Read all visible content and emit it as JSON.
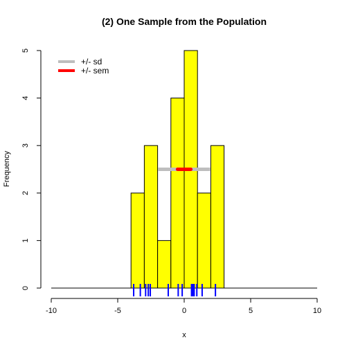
{
  "chart_data": {
    "type": "histogram",
    "title": "(2) One Sample from the Population",
    "xlabel": "x",
    "ylabel": "Frequency",
    "xlim": [
      -10,
      10
    ],
    "ylim": [
      0,
      5
    ],
    "x_ticks": [
      -10,
      -5,
      0,
      5,
      10
    ],
    "y_ticks": [
      0,
      1,
      2,
      3,
      4,
      5
    ],
    "bins": [
      {
        "x0": -4,
        "x1": -3,
        "count": 2
      },
      {
        "x0": -3,
        "x1": -2,
        "count": 3
      },
      {
        "x0": -2,
        "x1": -1,
        "count": 1
      },
      {
        "x0": -1,
        "x1": 0,
        "count": 4
      },
      {
        "x0": 0,
        "x1": 1,
        "count": 5
      },
      {
        "x0": 1,
        "x1": 2,
        "count": 2
      },
      {
        "x0": 2,
        "x1": 3,
        "count": 3
      }
    ],
    "rug": [
      -3.8,
      -3.3,
      -2.9,
      -2.7,
      -2.55,
      -1.2,
      -0.45,
      -0.15,
      0.55,
      0.65,
      0.75,
      0.95,
      1.35,
      2.35
    ],
    "bar_color": "#ffff00",
    "rug_color": "#0000ff",
    "sd_interval": {
      "name": "+/- sd",
      "center": 0,
      "lo": -1.95,
      "hi": 1.95,
      "y": 2.5,
      "color": "#bebebe"
    },
    "sem_interval": {
      "name": "+/- sem",
      "center": 0,
      "lo": -0.5,
      "hi": 0.5,
      "y": 2.5,
      "color": "#ff0000"
    },
    "legend_position": "top-left"
  }
}
